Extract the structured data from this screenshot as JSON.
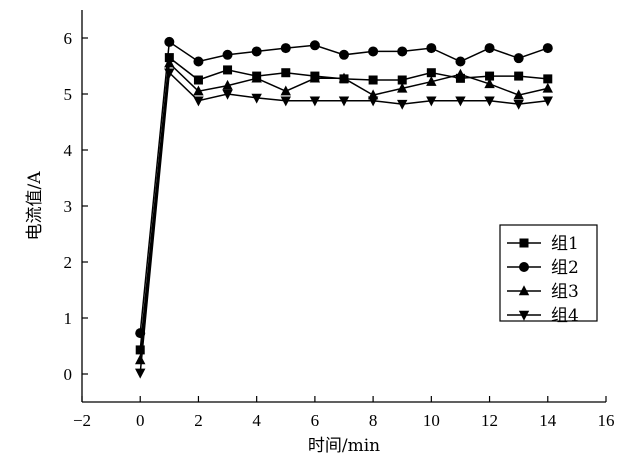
{
  "chart_data": {
    "type": "line",
    "xlabel": "时间/min",
    "ylabel": "电流值/A",
    "xlim": [
      -2,
      16
    ],
    "ylim": [
      -0.5,
      6.5
    ],
    "xticks": [
      -2,
      0,
      2,
      4,
      6,
      8,
      10,
      12,
      14,
      16
    ],
    "yticks": [
      0,
      1,
      2,
      3,
      4,
      5,
      6
    ],
    "xtick_labels": [
      "−2",
      "0",
      "2",
      "4",
      "6",
      "8",
      "10",
      "12",
      "14",
      "16"
    ],
    "ytick_labels": [
      "0",
      "1",
      "2",
      "3",
      "4",
      "5",
      "6"
    ],
    "grid": false,
    "legend_position": "right",
    "x": [
      0,
      1,
      2,
      3,
      4,
      5,
      6,
      7,
      8,
      9,
      10,
      11,
      12,
      13,
      14
    ],
    "series": [
      {
        "name": "组1",
        "marker": "square",
        "values": [
          0.43,
          5.65,
          5.25,
          5.43,
          5.32,
          5.38,
          5.32,
          5.27,
          5.25,
          5.25,
          5.38,
          5.28,
          5.32,
          5.32,
          5.27
        ]
      },
      {
        "name": "组2",
        "marker": "circle",
        "values": [
          0.73,
          5.93,
          5.58,
          5.7,
          5.76,
          5.82,
          5.87,
          5.7,
          5.76,
          5.76,
          5.82,
          5.58,
          5.82,
          5.64,
          5.82
        ]
      },
      {
        "name": "组3",
        "marker": "triangle-up",
        "values": [
          0.25,
          5.55,
          5.05,
          5.15,
          5.28,
          5.05,
          5.28,
          5.28,
          4.98,
          5.1,
          5.22,
          5.35,
          5.18,
          4.98,
          5.1
        ]
      },
      {
        "name": "组4",
        "marker": "triangle-down",
        "values": [
          0.02,
          5.38,
          4.88,
          5.0,
          4.93,
          4.88,
          4.88,
          4.88,
          4.88,
          4.82,
          4.88,
          4.88,
          4.88,
          4.82,
          4.88
        ]
      }
    ]
  }
}
